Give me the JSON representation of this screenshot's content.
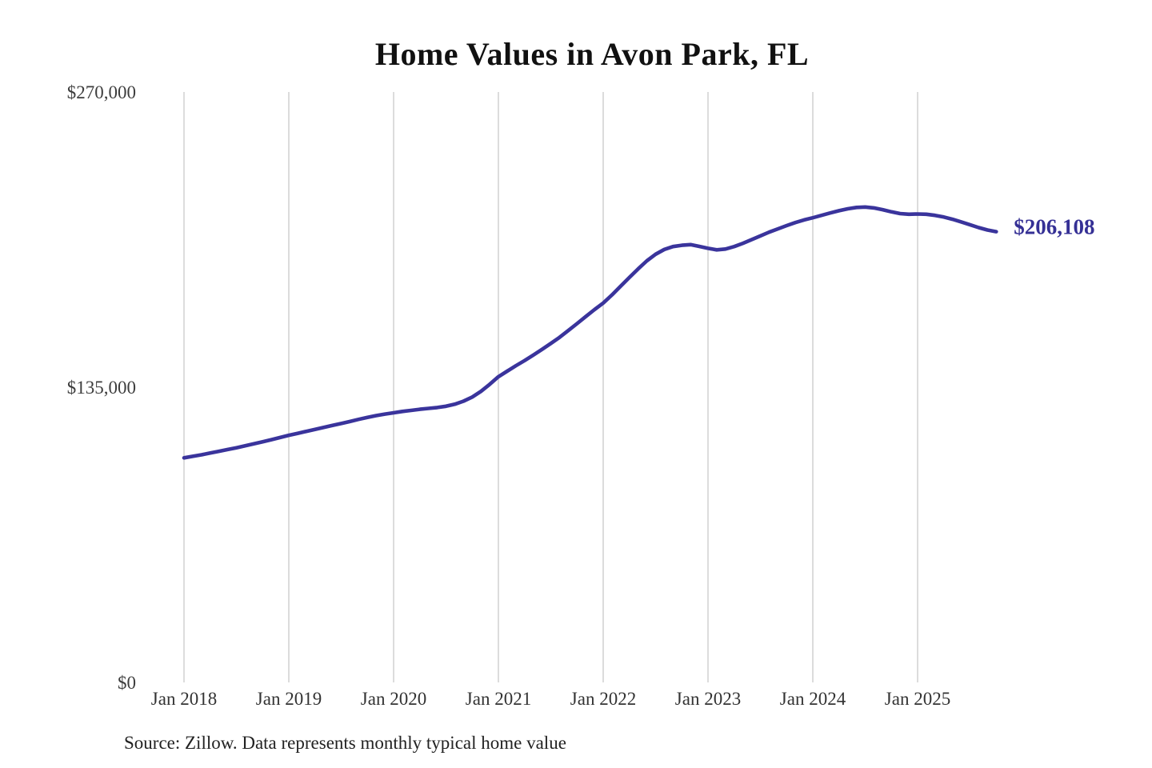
{
  "title": "Home Values in Avon Park, FL",
  "source_note": "Source: Zillow. Data represents monthly typical home value",
  "end_label": "$206,108",
  "colors": {
    "line": "#3a349c",
    "end_label": "#353095",
    "grid": "#c9c9c9",
    "axis_text": "#3d3d3d",
    "title_text": "#111111",
    "source_text": "#222222"
  },
  "chart_data": {
    "type": "line",
    "title": "Home Values in Avon Park, FL",
    "xlabel": "",
    "ylabel": "",
    "ylim": [
      0,
      270000
    ],
    "y_ticks": [
      0,
      135000,
      270000
    ],
    "y_tick_labels": [
      "$0",
      "$135,000",
      "$270,000"
    ],
    "x_tick_labels": [
      "Jan 2018",
      "Jan 2019",
      "Jan 2020",
      "Jan 2021",
      "Jan 2022",
      "Jan 2023",
      "Jan 2024",
      "Jan 2025"
    ],
    "x_range": {
      "start": "2018-01",
      "end": "2025-10",
      "interval": "monthly"
    },
    "grid": "vertical-only",
    "legend": "none",
    "last_value": 206108,
    "last_value_label": "$206,108",
    "series": [
      {
        "name": "Monthly typical home value",
        "monthly_values": [
          102700,
          103400,
          104100,
          104900,
          105700,
          106500,
          107300,
          108200,
          109100,
          110000,
          111000,
          112000,
          113000,
          113900,
          114800,
          115700,
          116600,
          117500,
          118400,
          119300,
          120300,
          121200,
          122000,
          122700,
          123300,
          123900,
          124400,
          124900,
          125300,
          125700,
          126300,
          127200,
          128600,
          130500,
          133100,
          136300,
          139800,
          142300,
          144800,
          147200,
          149700,
          152300,
          155000,
          157800,
          160900,
          164100,
          167300,
          170500,
          173500,
          177200,
          181200,
          185200,
          189100,
          192800,
          195800,
          198000,
          199300,
          199900,
          200200,
          199400,
          198500,
          197800,
          198200,
          199300,
          200800,
          202500,
          204200,
          205900,
          207400,
          208900,
          210300,
          211500,
          212500,
          213600,
          214700,
          215700,
          216600,
          217200,
          217400,
          217000,
          216200,
          215200,
          214400,
          214100,
          214200,
          214100,
          213600,
          212800,
          211800,
          210600,
          209300,
          208000,
          206900,
          206108
        ]
      }
    ]
  }
}
